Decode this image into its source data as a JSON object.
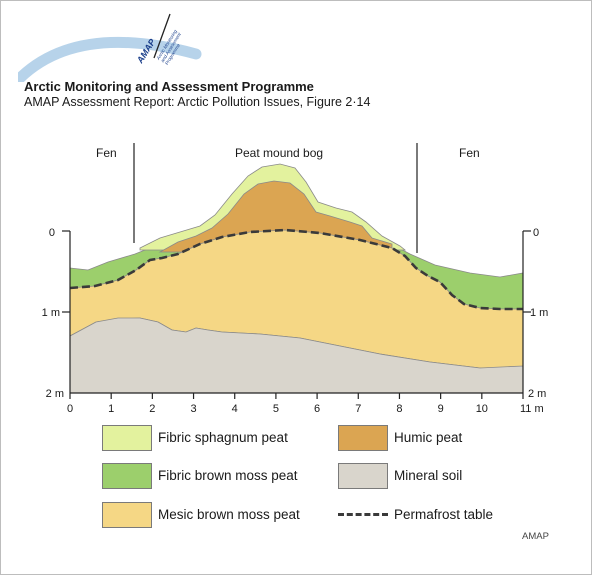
{
  "header": {
    "logo_text": "AMAP",
    "logo_subtext": "Arctic Monitoring and Assessment Programme",
    "org_title": "Arctic Monitoring and Assessment Programme",
    "subtitle": "AMAP Assessment Report: Arctic Pollution Issues, Figure 2·14"
  },
  "zones": {
    "left": "Fen",
    "center": "Peat mound bog",
    "right": "Fen"
  },
  "axes": {
    "x_ticks": [
      "0",
      "1",
      "2",
      "3",
      "4",
      "5",
      "6",
      "7",
      "8",
      "9",
      "10",
      "11 m"
    ],
    "y_left_ticks": [
      "0",
      "1 m",
      "2 m"
    ],
    "y_right_ticks": [
      "0",
      "1 m",
      "2 m"
    ]
  },
  "legend": [
    {
      "label": "Fibric sphagnum peat",
      "color": "#e3f29e"
    },
    {
      "label": "Humic peat",
      "color": "#dba552"
    },
    {
      "label": "Fibric brown moss peat",
      "color": "#9ccf6c"
    },
    {
      "label": "Mineral soil",
      "color": "#d9d5cc"
    },
    {
      "label": "Mesic brown moss peat",
      "color": "#f5d785"
    },
    {
      "label": "Permafrost table",
      "color": "#3a3a3a"
    }
  ],
  "credit": "AMAP"
}
